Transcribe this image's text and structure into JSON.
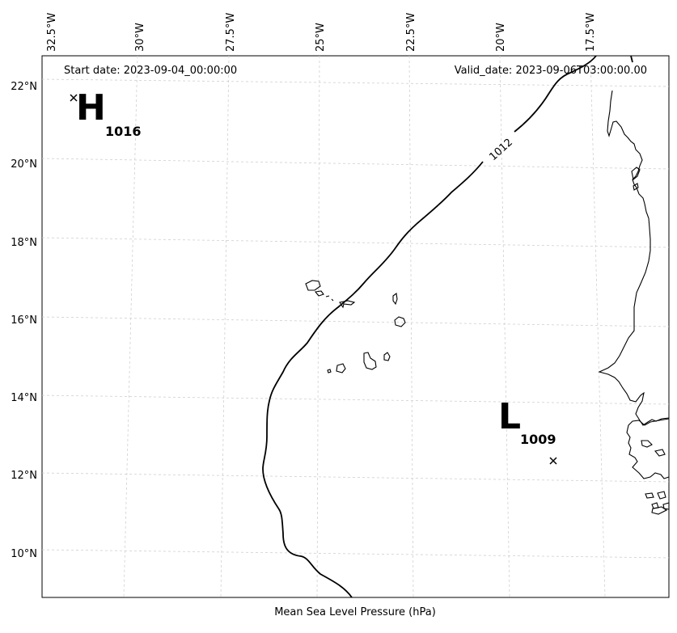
{
  "header": {
    "start_date": "Start date: 2023-09-04_00:00:00",
    "valid_date": "Valid_date: 2023-09-06T03:00:00.00"
  },
  "axes": {
    "lon_labels": [
      "32.5°W",
      "30°W",
      "27.5°W",
      "25°W",
      "22.5°W",
      "20°W",
      "17.5°W"
    ],
    "lat_labels": [
      "22°N",
      "20°N",
      "18°N",
      "16°N",
      "14°N",
      "12°N",
      "10°N"
    ]
  },
  "high": {
    "letter": "H",
    "value": "1016"
  },
  "low": {
    "letter": "L",
    "value": "1009"
  },
  "isobar_label": "1012",
  "caption": "Mean Sea Level Pressure (hPa)",
  "colors": {
    "line": "#000000",
    "grid": "#cfcfcf"
  }
}
